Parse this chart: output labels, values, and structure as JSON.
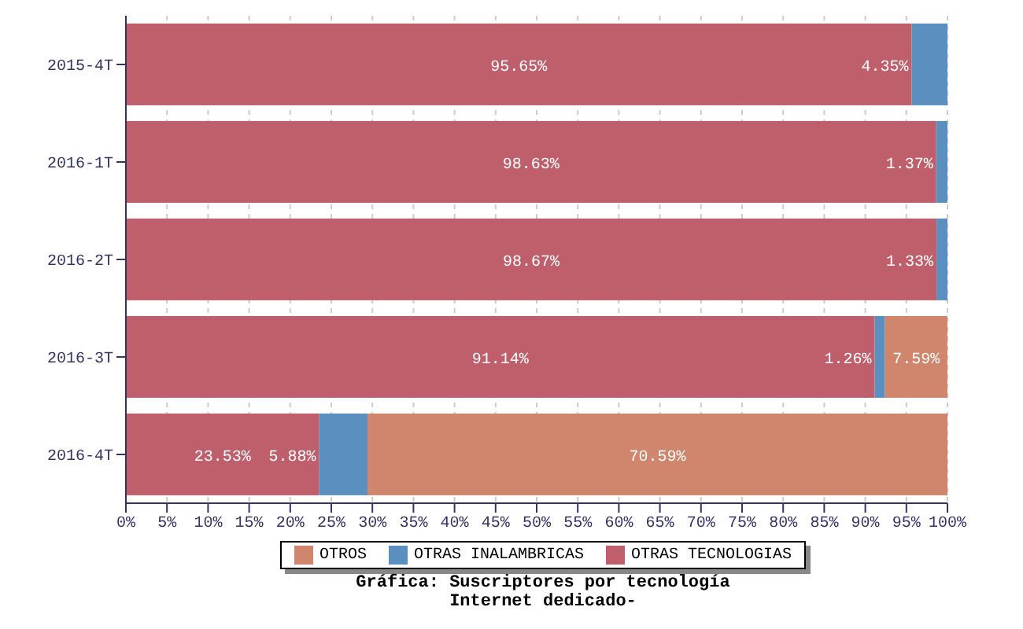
{
  "chart_data": {
    "type": "bar",
    "orientation": "horizontal",
    "stacked": true,
    "title": "Gráfica: Suscriptores por tecnología",
    "subtitle": "Internet dedicado-",
    "categories": [
      "2015-4T",
      "2016-1T",
      "2016-2T",
      "2016-3T",
      "2016-4T"
    ],
    "series": [
      {
        "name": "OTRAS TECNOLOGIAS",
        "color": "#bf5f6b",
        "values": [
          95.65,
          98.63,
          98.67,
          91.14,
          23.53
        ],
        "value_labels": [
          "95.65%",
          "98.63%",
          "98.67%",
          "91.14%",
          "23.53%"
        ]
      },
      {
        "name": "OTRAS INALAMBRICAS",
        "color": "#5b8fc0",
        "values": [
          4.35,
          1.37,
          1.33,
          1.26,
          5.88
        ],
        "value_labels": [
          "4.35%",
          "1.37%",
          "1.33%",
          "1.26%",
          "5.88%"
        ]
      },
      {
        "name": "OTROS",
        "color": "#d0866c",
        "values": [
          0,
          0,
          0,
          7.59,
          70.59
        ],
        "value_labels": [
          null,
          null,
          null,
          "7.59%",
          "70.59%"
        ]
      }
    ],
    "xlim": [
      0,
      100
    ],
    "xticks": [
      {
        "value": 0,
        "label": "0%"
      },
      {
        "value": 5,
        "label": "5%"
      },
      {
        "value": 10,
        "label": "10%"
      },
      {
        "value": 15,
        "label": "15%"
      },
      {
        "value": 20,
        "label": "20%"
      },
      {
        "value": 25,
        "label": "25%"
      },
      {
        "value": 30,
        "label": "30%"
      },
      {
        "value": 35,
        "label": "35%"
      },
      {
        "value": 40,
        "label": "40%"
      },
      {
        "value": 45,
        "label": "45%"
      },
      {
        "value": 50,
        "label": "50%"
      },
      {
        "value": 55,
        "label": "55%"
      },
      {
        "value": 60,
        "label": "60%"
      },
      {
        "value": 65,
        "label": "65%"
      },
      {
        "value": 70,
        "label": "70%"
      },
      {
        "value": 75,
        "label": "75%"
      },
      {
        "value": 80,
        "label": "80%"
      },
      {
        "value": 85,
        "label": "85%"
      },
      {
        "value": 90,
        "label": "90%"
      },
      {
        "value": 95,
        "label": "95%"
      },
      {
        "value": 100,
        "label": "100%"
      }
    ],
    "grid": "x",
    "legend": "bottom"
  }
}
